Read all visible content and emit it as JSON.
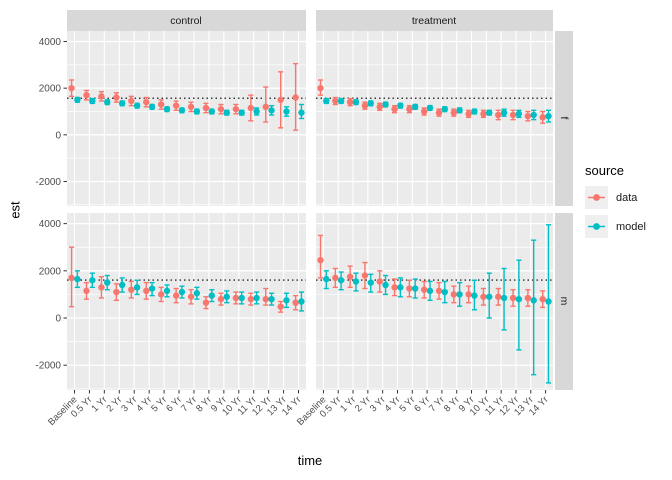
{
  "figure": {
    "y_axis_title": "est",
    "x_axis_title": "time",
    "col_facets": [
      "control",
      "treatment"
    ],
    "row_facets": [
      "f",
      "m"
    ],
    "legend": {
      "title": "source",
      "entries": [
        {
          "label": "data",
          "color": "#F8766D"
        },
        {
          "label": "model",
          "color": "#00BFC4"
        }
      ]
    }
  },
  "colors": {
    "panel_bg": "#EBEBEB",
    "strip_bg": "#D8D8D8",
    "grid": "#FFFFFF",
    "tick": "#333333",
    "tick_label": "#4D4D4D",
    "ref_line": "#000000",
    "data_series": "#F8766D",
    "model_series": "#00BFC4"
  },
  "chart_data": {
    "type": "scatter",
    "title": "",
    "xlabel": "time",
    "ylabel": "est",
    "grid": true,
    "legend_position": "right",
    "categories": [
      "Baseline",
      "0.5 Yr",
      "1 Yr",
      "2 Yr",
      "3 Yr",
      "4 Yr",
      "5 Yr",
      "6 Yr",
      "7 Yr",
      "8 Yr",
      "9 Yr",
      "10 Yr",
      "11 Yr",
      "12 Yr",
      "13 Yr",
      "14 Yr"
    ],
    "y_ticks": [
      -2000,
      0,
      2000,
      4000
    ],
    "y_minor_ticks": [
      -3000,
      -1000,
      1000,
      3000
    ],
    "ylim": [
      -3050,
      4450
    ],
    "panels": [
      {
        "col": 0,
        "row": 0,
        "col_label": "control",
        "row_label": "f",
        "ref_line": 1570,
        "series": [
          {
            "name": "data",
            "est": [
              2000,
              1700,
              1650,
              1600,
              1450,
              1400,
              1300,
              1250,
              1200,
              1150,
              1100,
              1100,
              1150,
              1200,
              1500,
              1600
            ],
            "lo": [
              1650,
              1500,
              1450,
              1400,
              1250,
              1200,
              1100,
              1050,
              1000,
              950,
              900,
              900,
              600,
              550,
              300,
              200
            ],
            "hi": [
              2350,
              1900,
              1850,
              1800,
              1650,
              1600,
              1500,
              1450,
              1400,
              1350,
              1300,
              1300,
              1700,
              2050,
              2700,
              3050
            ]
          },
          {
            "name": "model",
            "est": [
              1500,
              1450,
              1400,
              1350,
              1250,
              1200,
              1100,
              1050,
              1000,
              1000,
              950,
              950,
              1000,
              1050,
              1000,
              950
            ],
            "lo": [
              1400,
              1350,
              1300,
              1250,
              1150,
              1100,
              1000,
              950,
              900,
              900,
              850,
              850,
              850,
              850,
              800,
              700
            ],
            "hi": [
              1600,
              1550,
              1500,
              1450,
              1350,
              1300,
              1200,
              1150,
              1100,
              1100,
              1050,
              1050,
              1150,
              1250,
              1200,
              1300
            ]
          }
        ]
      },
      {
        "col": 1,
        "row": 0,
        "col_label": "treatment",
        "row_label": "f",
        "ref_line": 1570,
        "series": [
          {
            "name": "data",
            "est": [
              2000,
              1450,
              1400,
              1250,
              1200,
              1100,
              1100,
              1000,
              950,
              950,
              900,
              900,
              850,
              850,
              800,
              750
            ],
            "lo": [
              1700,
              1300,
              1250,
              1100,
              1050,
              950,
              950,
              850,
              800,
              800,
              750,
              750,
              650,
              650,
              600,
              500
            ],
            "hi": [
              2350,
              1600,
              1550,
              1400,
              1350,
              1250,
              1250,
              1150,
              1100,
              1100,
              1050,
              1050,
              1050,
              1050,
              1000,
              1000
            ]
          },
          {
            "name": "model",
            "est": [
              1450,
              1450,
              1400,
              1350,
              1300,
              1250,
              1200,
              1150,
              1100,
              1050,
              1000,
              950,
              950,
              900,
              850,
              800
            ],
            "lo": [
              1350,
              1350,
              1300,
              1250,
              1200,
              1150,
              1100,
              1050,
              1000,
              950,
              900,
              850,
              800,
              750,
              650,
              550
            ],
            "hi": [
              1550,
              1550,
              1500,
              1450,
              1400,
              1350,
              1300,
              1250,
              1200,
              1150,
              1100,
              1050,
              1100,
              1050,
              1050,
              1050
            ]
          }
        ]
      },
      {
        "col": 0,
        "row": 1,
        "col_label": "control",
        "row_label": "m",
        "ref_line": 1610,
        "series": [
          {
            "name": "data",
            "est": [
              1700,
              1150,
              1300,
              1100,
              1200,
              1150,
              1000,
              950,
              900,
              650,
              800,
              850,
              800,
              800,
              480,
              650
            ],
            "lo": [
              480,
              800,
              850,
              750,
              850,
              800,
              700,
              650,
              600,
              400,
              550,
              600,
              550,
              550,
              250,
              350
            ],
            "hi": [
              3000,
              1500,
              1750,
              1450,
              1550,
              1500,
              1300,
              1250,
              1200,
              900,
              1050,
              1100,
              1050,
              1250,
              700,
              950
            ]
          },
          {
            "name": "model",
            "est": [
              1650,
              1600,
              1500,
              1400,
              1300,
              1250,
              1150,
              1100,
              1050,
              950,
              900,
              850,
              850,
              800,
              750,
              700
            ],
            "lo": [
              1300,
              1300,
              1200,
              1100,
              1000,
              950,
              900,
              850,
              800,
              700,
              650,
              600,
              600,
              550,
              450,
              300
            ],
            "hi": [
              2000,
              1900,
              1800,
              1700,
              1600,
              1500,
              1400,
              1350,
              1300,
              1200,
              1150,
              1100,
              1100,
              1050,
              1050,
              1100
            ]
          }
        ]
      },
      {
        "col": 1,
        "row": 1,
        "col_label": "treatment",
        "row_label": "m",
        "ref_line": 1610,
        "series": [
          {
            "name": "data",
            "est": [
              2450,
              1700,
              1750,
              1800,
              1550,
              1300,
              1250,
              1200,
              1150,
              1000,
              1000,
              900,
              900,
              850,
              850,
              800
            ],
            "lo": [
              1700,
              1300,
              1300,
              1250,
              1100,
              950,
              900,
              850,
              800,
              650,
              650,
              550,
              550,
              500,
              500,
              450
            ],
            "hi": [
              3500,
              2100,
              2200,
              2350,
              2000,
              1650,
              1600,
              1550,
              1500,
              1350,
              1350,
              1250,
              1250,
              1200,
              1200,
              1150
            ]
          },
          {
            "name": "model",
            "est": [
              1650,
              1600,
              1550,
              1500,
              1400,
              1300,
              1250,
              1150,
              1100,
              1000,
              950,
              900,
              850,
              800,
              750,
              700
            ],
            "lo": [
              1250,
              1200,
              1150,
              1100,
              1000,
              900,
              850,
              750,
              650,
              500,
              350,
              0,
              -500,
              -1350,
              -2400,
              -2750
            ],
            "hi": [
              2000,
              1950,
              1900,
              1850,
              1800,
              1700,
              1650,
              1550,
              1550,
              1500,
              1600,
              1900,
              2100,
              2450,
              3300,
              3950
            ]
          }
        ]
      }
    ]
  }
}
